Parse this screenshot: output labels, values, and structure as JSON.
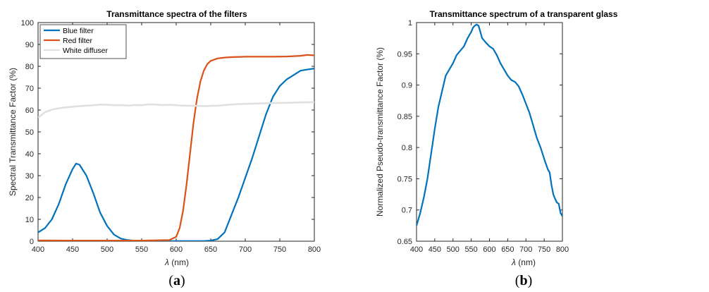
{
  "chart_data": [
    {
      "type": "line",
      "title": "Transmittance spectra of the filters",
      "xlabel_symbol": "λ",
      "xlabel_unit": " (nm)",
      "ylabel": "Spectral Transmittance Factor (%)",
      "xlim": [
        400,
        800
      ],
      "ylim": [
        0,
        100
      ],
      "xticks": [
        400,
        450,
        500,
        550,
        600,
        650,
        700,
        750,
        800
      ],
      "yticks": [
        0,
        10,
        20,
        30,
        40,
        50,
        60,
        70,
        80,
        90,
        100
      ],
      "legend_position": "top-left",
      "panel_label": "a",
      "series": [
        {
          "name": "Blue filter",
          "color": "#0072BD",
          "x": [
            400,
            410,
            420,
            430,
            440,
            450,
            455,
            460,
            470,
            480,
            490,
            500,
            510,
            520,
            530,
            540,
            550,
            560,
            570,
            580,
            590,
            600,
            610,
            620,
            630,
            640,
            650,
            660,
            670,
            680,
            690,
            700,
            710,
            720,
            730,
            740,
            750,
            760,
            770,
            780,
            790,
            800
          ],
          "y": [
            4,
            6,
            10,
            17,
            26,
            33,
            35.5,
            35,
            30,
            22,
            13,
            7,
            3,
            1.2,
            0.5,
            0.2,
            0.1,
            0.1,
            0.1,
            0.1,
            0.1,
            0.1,
            0.1,
            0.1,
            0.1,
            0.1,
            0.3,
            1.0,
            4,
            12,
            20,
            29,
            38,
            48,
            58,
            66,
            71,
            74,
            76,
            78,
            78.5,
            79
          ]
        },
        {
          "name": "Red filter",
          "color": "#D95319",
          "x": [
            400,
            450,
            500,
            550,
            590,
            600,
            605,
            610,
            615,
            620,
            625,
            630,
            635,
            640,
            645,
            650,
            660,
            670,
            680,
            700,
            720,
            740,
            760,
            780,
            790,
            800
          ],
          "y": [
            0.4,
            0.3,
            0.3,
            0.3,
            0.5,
            2,
            6,
            14,
            26,
            40,
            54,
            65,
            73,
            78,
            81,
            82.5,
            83.6,
            84,
            84.2,
            84.4,
            84.4,
            84.4,
            84.5,
            84.8,
            85.2,
            85
          ]
        },
        {
          "name": "White diffuser",
          "color": "#E0E0E0",
          "x": [
            400,
            410,
            420,
            430,
            440,
            450,
            460,
            470,
            480,
            490,
            500,
            510,
            520,
            530,
            540,
            550,
            560,
            570,
            580,
            590,
            600,
            610,
            620,
            630,
            640,
            650,
            660,
            670,
            680,
            690,
            700,
            720,
            740,
            760,
            780,
            800
          ],
          "y": [
            56.5,
            59,
            60.2,
            60.8,
            61.2,
            61.5,
            61.8,
            62,
            62.2,
            62.5,
            62.4,
            62.2,
            62.3,
            62.0,
            62.3,
            62.2,
            62.6,
            62.5,
            62.3,
            62.4,
            62.2,
            62.0,
            62.0,
            61.9,
            61.8,
            61.9,
            62.0,
            62.3,
            62.5,
            62.7,
            62.8,
            63.0,
            63.2,
            63.3,
            63.5,
            63.6
          ]
        }
      ]
    },
    {
      "type": "line",
      "title": "Transmittance spectrum of a transparent glass",
      "xlabel_symbol": "λ",
      "xlabel_unit": " (nm)",
      "ylabel": "Normalized Pseudo-transmittance Factor (%)",
      "xlim": [
        400,
        800
      ],
      "ylim": [
        0.65,
        1
      ],
      "xticks": [
        400,
        450,
        500,
        550,
        600,
        650,
        700,
        750,
        800
      ],
      "yticks": [
        0.65,
        0.7,
        0.75,
        0.8,
        0.85,
        0.9,
        0.95,
        1
      ],
      "yticklabels": [
        "0.65",
        "0.7",
        "0.75",
        "0.8",
        "0.85",
        "0.9",
        "0.95",
        "1"
      ],
      "panel_label": "b",
      "series": [
        {
          "color": "#0072BD",
          "x": [
            400,
            410,
            420,
            430,
            440,
            450,
            460,
            470,
            480,
            490,
            500,
            510,
            520,
            530,
            540,
            550,
            555,
            560,
            565,
            570,
            575,
            580,
            590,
            600,
            610,
            620,
            630,
            640,
            650,
            660,
            670,
            680,
            690,
            700,
            710,
            720,
            730,
            740,
            750,
            760,
            765,
            770,
            775,
            780,
            785,
            790,
            795,
            800
          ],
          "y": [
            0.675,
            0.695,
            0.72,
            0.75,
            0.79,
            0.83,
            0.865,
            0.89,
            0.915,
            0.925,
            0.935,
            0.948,
            0.955,
            0.962,
            0.975,
            0.985,
            0.992,
            0.995,
            0.997,
            0.995,
            0.985,
            0.975,
            0.968,
            0.962,
            0.958,
            0.948,
            0.935,
            0.925,
            0.915,
            0.908,
            0.905,
            0.898,
            0.885,
            0.87,
            0.855,
            0.835,
            0.815,
            0.8,
            0.782,
            0.765,
            0.76,
            0.74,
            0.725,
            0.718,
            0.712,
            0.71,
            0.695,
            0.69
          ]
        }
      ]
    }
  ]
}
